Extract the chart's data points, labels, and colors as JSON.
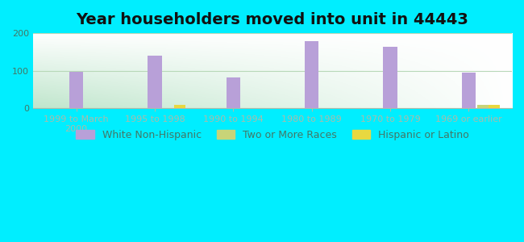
{
  "title": "Year householders moved into unit in 44443",
  "categories": [
    "1999 to March\n2000",
    "1995 to 1998",
    "1990 to 1994",
    "1980 to 1989",
    "1970 to 1979",
    "1969 or earlier"
  ],
  "white_non_hispanic": [
    97,
    140,
    82,
    178,
    163,
    95
  ],
  "two_or_more_races": [
    0,
    0,
    0,
    0,
    0,
    10
  ],
  "hispanic_or_latino": [
    0,
    10,
    0,
    0,
    0,
    10
  ],
  "bar_width": 0.18,
  "ylim": [
    0,
    200
  ],
  "yticks": [
    0,
    100,
    200
  ],
  "white_color": "#b8a0d8",
  "two_more_color": "#c8d478",
  "hispanic_color": "#e8d840",
  "bg_outer": "#00eeff",
  "grid_color": "#b8d8b8",
  "title_fontsize": 14,
  "tick_fontsize": 8,
  "legend_fontsize": 9
}
